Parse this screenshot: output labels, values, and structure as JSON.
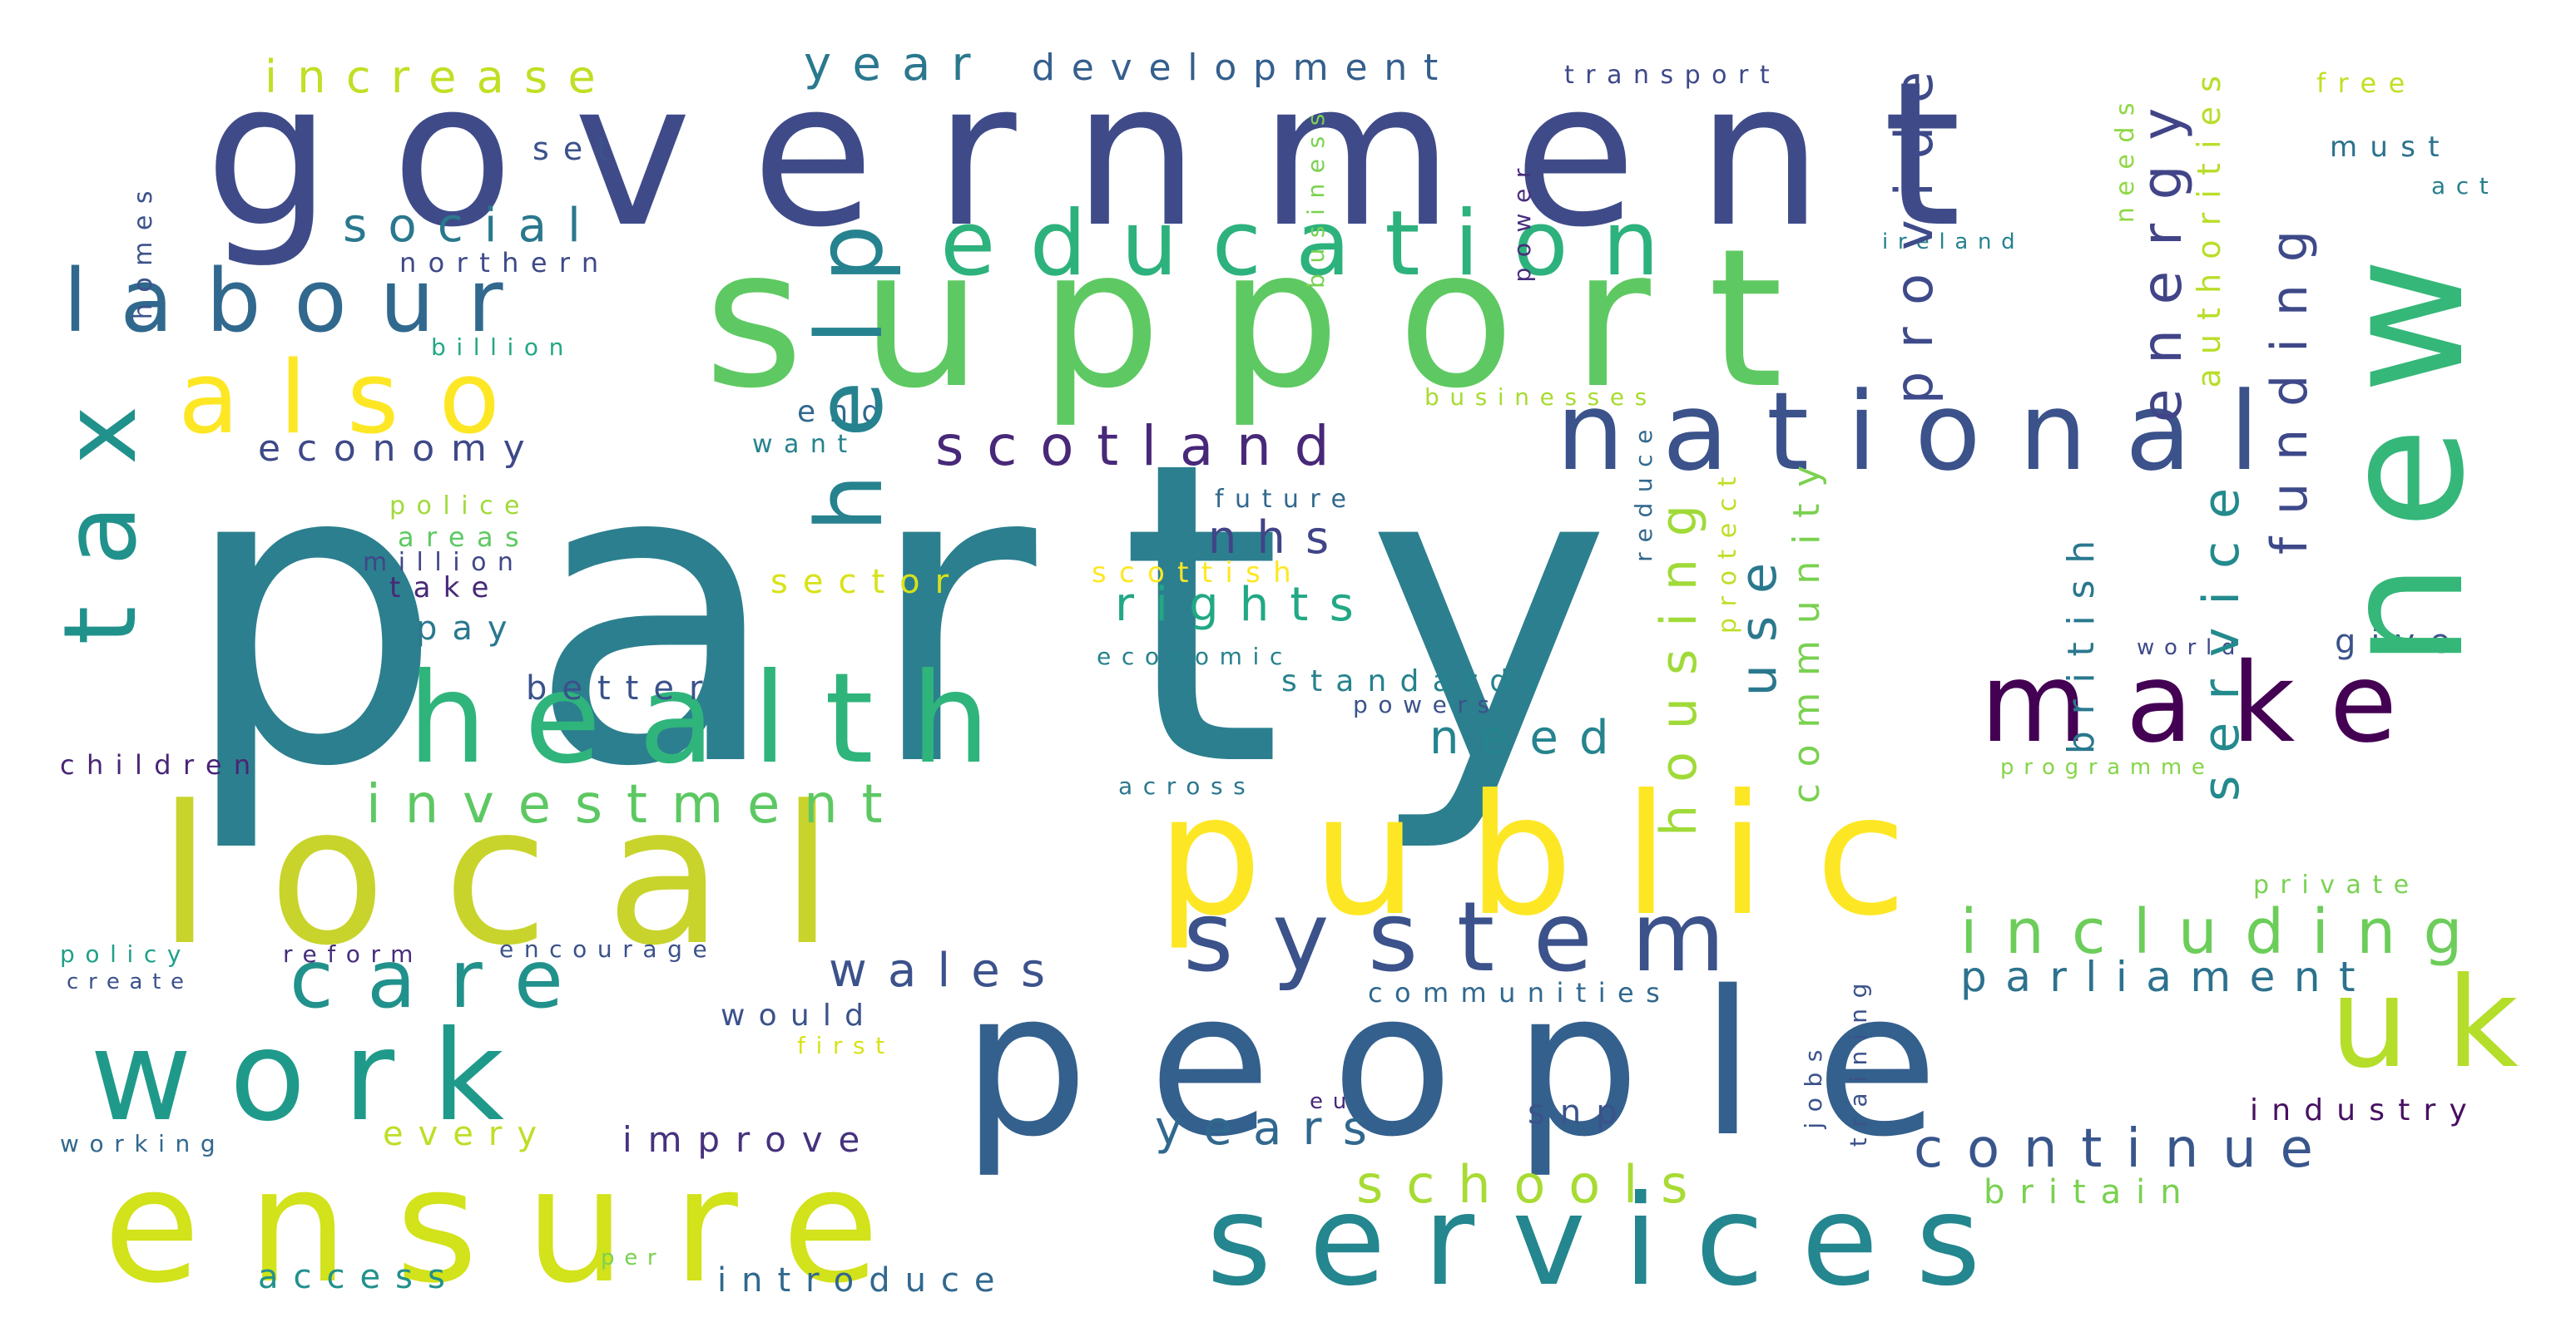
{
  "words": [
    {
      "text": "party",
      "color": "#2c7f8e"
    },
    {
      "text": "government",
      "color": "#3f4b89"
    },
    {
      "text": "support",
      "color": "#5ec962"
    },
    {
      "text": "people",
      "color": "#34608d"
    },
    {
      "text": "local",
      "color": "#c8d42b"
    },
    {
      "text": "public",
      "color": "#fde725"
    },
    {
      "text": "ensure",
      "color": "#d2e21b"
    },
    {
      "text": "services",
      "color": "#24868e"
    },
    {
      "text": "health",
      "color": "#2fb47c"
    },
    {
      "text": "work",
      "color": "#1f9a8a"
    },
    {
      "text": "new",
      "color": "#35b779"
    },
    {
      "text": "national",
      "color": "#3b528b"
    },
    {
      "text": "tax",
      "color": "#21918c"
    },
    {
      "text": "education",
      "color": "#2db27d"
    },
    {
      "text": "labour",
      "color": "#31688e"
    },
    {
      "text": "also",
      "color": "#fde725"
    },
    {
      "text": "make",
      "color": "#440154"
    },
    {
      "text": "system",
      "color": "#3b528b"
    },
    {
      "text": "help",
      "color": "#26828e"
    },
    {
      "text": "uk",
      "color": "#b5de2b"
    },
    {
      "text": "care",
      "color": "#21918c"
    },
    {
      "text": "scotland",
      "color": "#482878"
    },
    {
      "text": "housing",
      "color": "#a0da39"
    },
    {
      "text": "service",
      "color": "#238a8d"
    },
    {
      "text": "use",
      "color": "#2a788e"
    },
    {
      "text": "provide",
      "color": "#3e4a89"
    },
    {
      "text": "energy",
      "color": "#414487"
    },
    {
      "text": "funding",
      "color": "#3e4989"
    },
    {
      "text": "including",
      "color": "#6ccd5a"
    },
    {
      "text": "investment",
      "color": "#5dc863"
    },
    {
      "text": "continue",
      "color": "#39568c"
    },
    {
      "text": "schools",
      "color": "#a8db34"
    },
    {
      "text": "years",
      "color": "#31688e"
    },
    {
      "text": "wales",
      "color": "#3b528b"
    },
    {
      "text": "social",
      "color": "#2a788e"
    },
    {
      "text": "parliament",
      "color": "#2c728e"
    },
    {
      "text": "rights",
      "color": "#22a884"
    },
    {
      "text": "nhs",
      "color": "#414487"
    },
    {
      "text": "need",
      "color": "#25848e"
    },
    {
      "text": "community",
      "color": "#7ad151"
    },
    {
      "text": "year",
      "color": "#2a788e"
    },
    {
      "text": "development",
      "color": "#355f8d"
    },
    {
      "text": "increase",
      "color": "#c0df25"
    },
    {
      "text": "economy",
      "color": "#3e4989"
    },
    {
      "text": "british",
      "color": "#2a788e"
    },
    {
      "text": "industry",
      "color": "#471063"
    },
    {
      "text": "britain",
      "color": "#7ad151"
    },
    {
      "text": "improve",
      "color": "#46327e"
    },
    {
      "text": "introduce",
      "color": "#31688e"
    },
    {
      "text": "every",
      "color": "#bddf26"
    },
    {
      "text": "access",
      "color": "#21918c"
    },
    {
      "text": "communities",
      "color": "#31688e"
    },
    {
      "text": "snp",
      "color": "#3b528b"
    },
    {
      "text": "sector",
      "color": "#d8e219"
    },
    {
      "text": "scottish",
      "color": "#fde725"
    },
    {
      "text": "better",
      "color": "#3b528b"
    },
    {
      "text": "pay",
      "color": "#2a788e"
    },
    {
      "text": "children",
      "color": "#482576"
    },
    {
      "text": "standards",
      "color": "#26828e"
    },
    {
      "text": "give",
      "color": "#3b528b"
    },
    {
      "text": "would",
      "color": "#3b528b"
    },
    {
      "text": "transport",
      "color": "#3e4989"
    },
    {
      "text": "must",
      "color": "#2c728e"
    },
    {
      "text": "free",
      "color": "#c2df23"
    },
    {
      "text": "act",
      "color": "#277f8e"
    },
    {
      "text": "set",
      "color": "#3b528b"
    },
    {
      "text": "northern",
      "color": "#3e4989"
    },
    {
      "text": "billion",
      "color": "#22a884"
    },
    {
      "text": "homes",
      "color": "#3b528b"
    },
    {
      "text": "end",
      "color": "#31688e"
    },
    {
      "text": "want",
      "color": "#26828e"
    },
    {
      "text": "businesses",
      "color": "#a8db34"
    },
    {
      "text": "business",
      "color": "#7ad151"
    },
    {
      "text": "power",
      "color": "#472d7b"
    },
    {
      "text": "needs",
      "color": "#8fd744"
    },
    {
      "text": "authorities",
      "color": "#b8de29"
    },
    {
      "text": "ireland",
      "color": "#26828e"
    },
    {
      "text": "police",
      "color": "#a0da39"
    },
    {
      "text": "areas",
      "color": "#5ec962"
    },
    {
      "text": "million",
      "color": "#404688"
    },
    {
      "text": "take",
      "color": "#482878"
    },
    {
      "text": "future",
      "color": "#31688e"
    },
    {
      "text": "economic",
      "color": "#26828e"
    },
    {
      "text": "powers",
      "color": "#3b528b"
    },
    {
      "text": "reduce",
      "color": "#31688e"
    },
    {
      "text": "protect",
      "color": "#bddf26"
    },
    {
      "text": "across",
      "color": "#2a788e"
    },
    {
      "text": "programme",
      "color": "#86d549"
    },
    {
      "text": "world",
      "color": "#3e4989"
    },
    {
      "text": "private",
      "color": "#7ad151"
    },
    {
      "text": "policy",
      "color": "#1fa088"
    },
    {
      "text": "reform",
      "color": "#472d7b"
    },
    {
      "text": "encourage",
      "color": "#3b528b"
    },
    {
      "text": "create",
      "color": "#3b528b"
    },
    {
      "text": "first",
      "color": "#d8e219"
    },
    {
      "text": "working",
      "color": "#31688e"
    },
    {
      "text": "jobs",
      "color": "#3b528b"
    },
    {
      "text": "training",
      "color": "#3b528b"
    },
    {
      "text": "eu",
      "color": "#482878"
    },
    {
      "text": "per",
      "color": "#7ad151"
    }
  ]
}
